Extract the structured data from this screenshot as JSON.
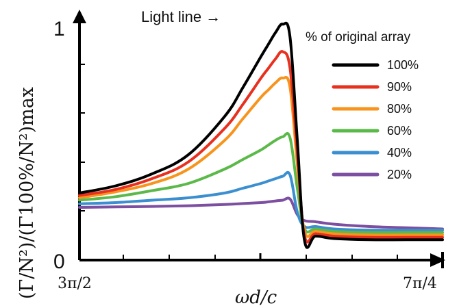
{
  "chart_data": {
    "type": "line",
    "xlabel": "ωd/c",
    "ylabel": "(Γ/N²)/(Γ100%/N²)max",
    "x_tick_labels": [
      "3π/2",
      "7π/4"
    ],
    "y_tick_labels": [
      "0",
      "1"
    ],
    "xlim": [
      0,
      1
    ],
    "ylim": [
      0,
      1
    ],
    "annotation": "Light line →",
    "legend_title": "% of original array",
    "legend_position": "right",
    "x": [
      0,
      0.1,
      0.2,
      0.3,
      0.4,
      0.45,
      0.5,
      0.52,
      0.54,
      0.56,
      0.58,
      0.6,
      0.62,
      0.65,
      0.7,
      0.8,
      0.9,
      1.0
    ],
    "series": [
      {
        "name": "100%",
        "color": "#000000",
        "values": [
          0.28,
          0.31,
          0.36,
          0.44,
          0.6,
          0.72,
          0.85,
          0.9,
          0.95,
          0.985,
          0.93,
          0.5,
          0.08,
          0.1,
          0.09,
          0.085,
          0.085,
          0.085
        ]
      },
      {
        "name": "90%",
        "color": "#e8301f",
        "values": [
          0.27,
          0.295,
          0.34,
          0.41,
          0.55,
          0.65,
          0.76,
          0.8,
          0.84,
          0.87,
          0.8,
          0.45,
          0.1,
          0.11,
          0.1,
          0.095,
          0.095,
          0.095
        ]
      },
      {
        "name": "80%",
        "color": "#f7941d",
        "values": [
          0.26,
          0.285,
          0.32,
          0.38,
          0.5,
          0.59,
          0.68,
          0.71,
          0.74,
          0.76,
          0.72,
          0.4,
          0.12,
          0.12,
          0.11,
          0.105,
          0.105,
          0.105
        ]
      },
      {
        "name": "60%",
        "color": "#5bb949",
        "values": [
          0.25,
          0.265,
          0.29,
          0.32,
          0.38,
          0.42,
          0.46,
          0.48,
          0.5,
          0.515,
          0.51,
          0.3,
          0.13,
          0.13,
          0.12,
          0.115,
          0.115,
          0.115
        ]
      },
      {
        "name": "40%",
        "color": "#3b8fd0",
        "values": [
          0.235,
          0.24,
          0.25,
          0.26,
          0.28,
          0.3,
          0.32,
          0.33,
          0.34,
          0.35,
          0.355,
          0.2,
          0.14,
          0.14,
          0.13,
          0.125,
          0.125,
          0.125
        ]
      },
      {
        "name": "20%",
        "color": "#7d4fa0",
        "values": [
          0.22,
          0.222,
          0.224,
          0.227,
          0.232,
          0.236,
          0.24,
          0.243,
          0.247,
          0.25,
          0.255,
          0.19,
          0.165,
          0.16,
          0.15,
          0.14,
          0.135,
          0.13
        ]
      }
    ]
  }
}
